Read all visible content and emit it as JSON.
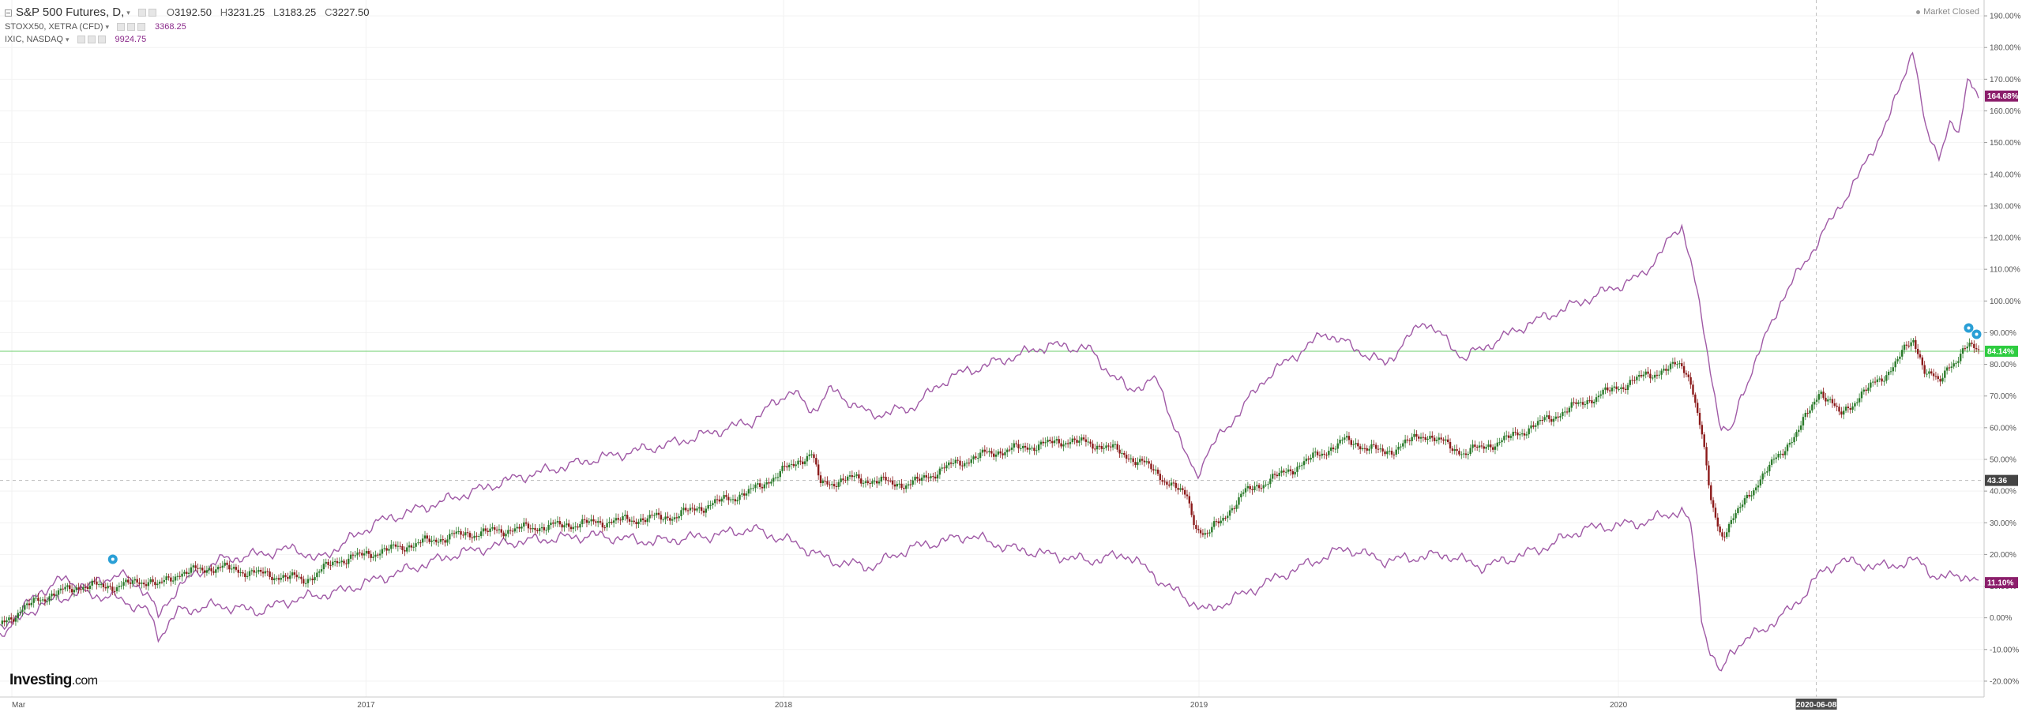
{
  "main_symbol": {
    "name": "S&P 500 Futures, D,",
    "open_label": "O",
    "open": "3192.50",
    "high_label": "H",
    "high": "3231.25",
    "low_label": "L",
    "low": "3183.25",
    "close_label": "C",
    "close": "3227.50"
  },
  "compare_symbols": [
    {
      "name": "STOXX50, XETRA (CFD)",
      "value": "3368.25"
    },
    {
      "name": "IXIC, NASDAQ",
      "value": "9924.75"
    }
  ],
  "market_status": "Market Closed",
  "logo": {
    "bold": "Investing",
    "suffix": ".com"
  },
  "colors": {
    "up": "#2a7a2a",
    "down": "#8b1a1a",
    "compare": "#a05aa6",
    "tag_ixic": "#8b1e6b",
    "tag_spx": "#2ecc40",
    "tag_crosshair": "#444444",
    "marker": "#2a9fd6"
  },
  "chart_data": {
    "type": "line",
    "y_axis": {
      "unit": "%",
      "ticks": [
        "190.00%",
        "180.00%",
        "170.00%",
        "160.00%",
        "150.00%",
        "140.00%",
        "130.00%",
        "120.00%",
        "110.00%",
        "100.00%",
        "90.00%",
        "80.00%",
        "70.00%",
        "60.00%",
        "50.00%",
        "40.00%",
        "30.00%",
        "20.00%",
        "10.00%",
        "0.00%",
        "-10.00%",
        "-20.00%"
      ],
      "range": [
        -25,
        195
      ],
      "side": "right"
    },
    "x_axis": {
      "ticks": [
        "Mar",
        "2017",
        "2018",
        "2019",
        "2020"
      ],
      "crosshair_label": "2020-06-08"
    },
    "price_tags": {
      "ixic": "164.68%",
      "spx": "84.14%",
      "crosshair": "43.36",
      "stoxx": "11.10%"
    },
    "horizontal_lines": [
      {
        "name": "spx-last",
        "value": 84.14
      },
      {
        "name": "crosshair",
        "value": 43.36
      }
    ],
    "series": [
      {
        "name": "IXIC, NASDAQ",
        "style": "line",
        "points": [
          [
            0,
            -4
          ],
          [
            0.02,
            8
          ],
          [
            0.03,
            12
          ],
          [
            0.045,
            10
          ],
          [
            0.06,
            14
          ],
          [
            0.075,
            8
          ],
          [
            0.08,
            0
          ],
          [
            0.09,
            10
          ],
          [
            0.11,
            18
          ],
          [
            0.13,
            20
          ],
          [
            0.15,
            22
          ],
          [
            0.16,
            18
          ],
          [
            0.19,
            30
          ],
          [
            0.22,
            36
          ],
          [
            0.26,
            44
          ],
          [
            0.3,
            50
          ],
          [
            0.34,
            55
          ],
          [
            0.38,
            62
          ],
          [
            0.4,
            72
          ],
          [
            0.41,
            65
          ],
          [
            0.42,
            72
          ],
          [
            0.44,
            64
          ],
          [
            0.46,
            66
          ],
          [
            0.48,
            76
          ],
          [
            0.5,
            80
          ],
          [
            0.53,
            86
          ],
          [
            0.55,
            85
          ],
          [
            0.56,
            78
          ],
          [
            0.57,
            72
          ],
          [
            0.585,
            75
          ],
          [
            0.6,
            50
          ],
          [
            0.605,
            45
          ],
          [
            0.61,
            52
          ],
          [
            0.64,
            76
          ],
          [
            0.67,
            90
          ],
          [
            0.7,
            80
          ],
          [
            0.72,
            94
          ],
          [
            0.74,
            82
          ],
          [
            0.77,
            92
          ],
          [
            0.8,
            100
          ],
          [
            0.83,
            108
          ],
          [
            0.85,
            124
          ],
          [
            0.855,
            112
          ],
          [
            0.865,
            76
          ],
          [
            0.87,
            60
          ],
          [
            0.875,
            58
          ],
          [
            0.88,
            70
          ],
          [
            0.9,
            100
          ],
          [
            0.92,
            120
          ],
          [
            0.94,
            140
          ],
          [
            0.955,
            158
          ],
          [
            0.967,
            180
          ],
          [
            0.973,
            154
          ],
          [
            0.98,
            146
          ],
          [
            0.985,
            156
          ],
          [
            0.99,
            152
          ],
          [
            0.995,
            172
          ],
          [
            1,
            164.68
          ]
        ]
      },
      {
        "name": "STOXX50, XETRA (CFD)",
        "style": "line",
        "points": [
          [
            0,
            -5
          ],
          [
            0.02,
            4
          ],
          [
            0.04,
            8
          ],
          [
            0.06,
            6
          ],
          [
            0.075,
            2
          ],
          [
            0.08,
            -6
          ],
          [
            0.09,
            2
          ],
          [
            0.11,
            4
          ],
          [
            0.13,
            2
          ],
          [
            0.15,
            6
          ],
          [
            0.17,
            8
          ],
          [
            0.2,
            14
          ],
          [
            0.23,
            20
          ],
          [
            0.26,
            24
          ],
          [
            0.3,
            26
          ],
          [
            0.33,
            24
          ],
          [
            0.36,
            26
          ],
          [
            0.38,
            28
          ],
          [
            0.4,
            24
          ],
          [
            0.42,
            18
          ],
          [
            0.44,
            16
          ],
          [
            0.46,
            22
          ],
          [
            0.49,
            26
          ],
          [
            0.51,
            22
          ],
          [
            0.53,
            20
          ],
          [
            0.55,
            18
          ],
          [
            0.57,
            20
          ],
          [
            0.59,
            10
          ],
          [
            0.61,
            2
          ],
          [
            0.63,
            8
          ],
          [
            0.65,
            14
          ],
          [
            0.68,
            22
          ],
          [
            0.7,
            18
          ],
          [
            0.73,
            20
          ],
          [
            0.75,
            16
          ],
          [
            0.78,
            22
          ],
          [
            0.8,
            28
          ],
          [
            0.83,
            30
          ],
          [
            0.85,
            34
          ],
          [
            0.855,
            28
          ],
          [
            0.86,
            0
          ],
          [
            0.865,
            -12
          ],
          [
            0.87,
            -18
          ],
          [
            0.875,
            -10
          ],
          [
            0.885,
            -6
          ],
          [
            0.9,
            0
          ],
          [
            0.91,
            6
          ],
          [
            0.92,
            14
          ],
          [
            0.93,
            18
          ],
          [
            0.95,
            16
          ],
          [
            0.97,
            18
          ],
          [
            0.98,
            12
          ],
          [
            0.99,
            14
          ],
          [
            1,
            11.1
          ]
        ]
      },
      {
        "name": "S&P 500 Futures, D,",
        "style": "candlestick",
        "points": [
          [
            0,
            -2
          ],
          [
            0.02,
            6
          ],
          [
            0.04,
            10
          ],
          [
            0.06,
            10
          ],
          [
            0.075,
            12
          ],
          [
            0.08,
            10
          ],
          [
            0.09,
            14
          ],
          [
            0.11,
            16
          ],
          [
            0.13,
            14
          ],
          [
            0.155,
            12
          ],
          [
            0.17,
            18
          ],
          [
            0.2,
            22
          ],
          [
            0.23,
            26
          ],
          [
            0.26,
            28
          ],
          [
            0.3,
            30
          ],
          [
            0.34,
            32
          ],
          [
            0.38,
            40
          ],
          [
            0.41,
            52
          ],
          [
            0.415,
            42
          ],
          [
            0.43,
            44
          ],
          [
            0.46,
            42
          ],
          [
            0.48,
            48
          ],
          [
            0.5,
            52
          ],
          [
            0.54,
            56
          ],
          [
            0.56,
            54
          ],
          [
            0.58,
            48
          ],
          [
            0.6,
            38
          ],
          [
            0.605,
            28
          ],
          [
            0.61,
            26
          ],
          [
            0.63,
            40
          ],
          [
            0.65,
            46
          ],
          [
            0.68,
            56
          ],
          [
            0.7,
            52
          ],
          [
            0.72,
            58
          ],
          [
            0.74,
            52
          ],
          [
            0.76,
            56
          ],
          [
            0.78,
            62
          ],
          [
            0.8,
            68
          ],
          [
            0.83,
            76
          ],
          [
            0.85,
            80
          ],
          [
            0.855,
            74
          ],
          [
            0.86,
            58
          ],
          [
            0.865,
            36
          ],
          [
            0.87,
            26
          ],
          [
            0.875,
            30
          ],
          [
            0.885,
            40
          ],
          [
            0.9,
            52
          ],
          [
            0.91,
            60
          ],
          [
            0.92,
            72
          ],
          [
            0.93,
            64
          ],
          [
            0.94,
            70
          ],
          [
            0.955,
            78
          ],
          [
            0.967,
            88
          ],
          [
            0.973,
            78
          ],
          [
            0.98,
            74
          ],
          [
            0.985,
            80
          ],
          [
            0.99,
            82
          ],
          [
            0.995,
            86
          ],
          [
            1,
            84.14
          ]
        ]
      }
    ]
  }
}
